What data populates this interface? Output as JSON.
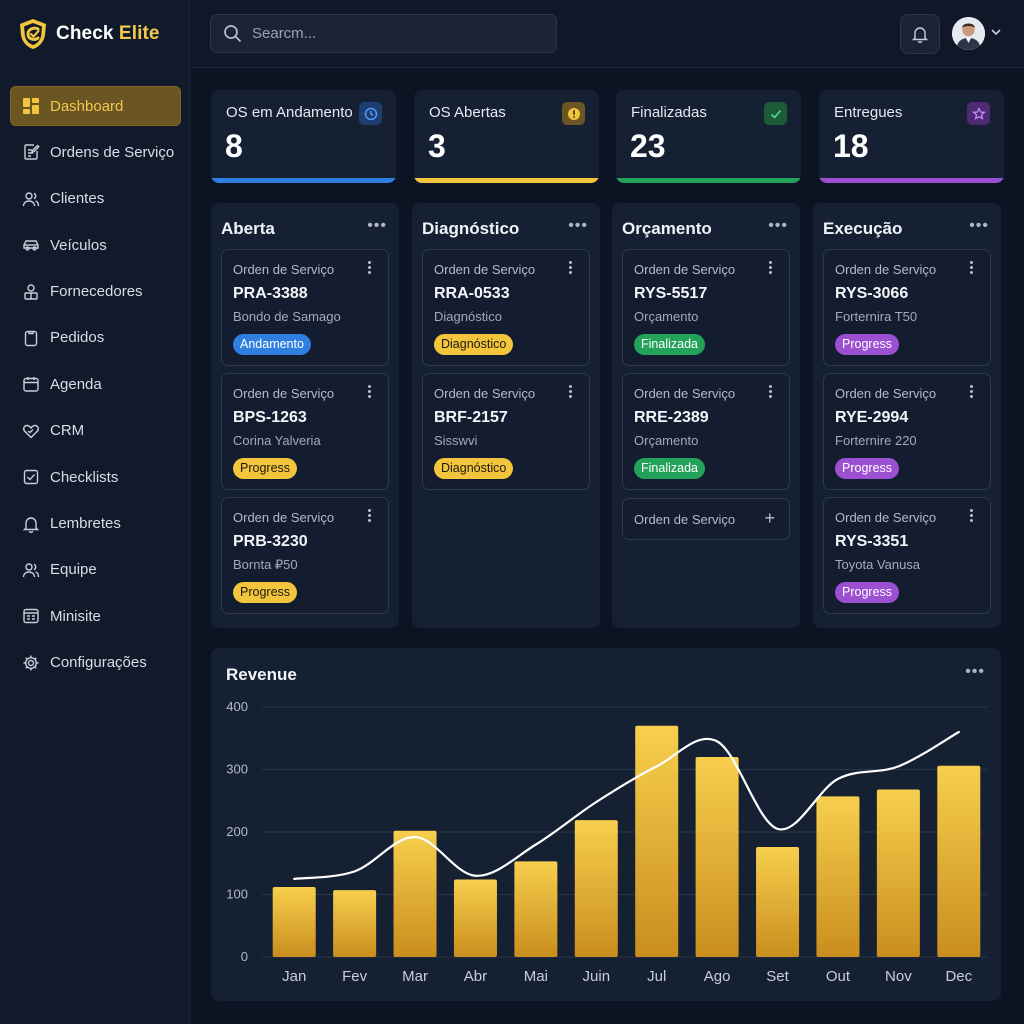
{
  "app": {
    "brand_first": "Check",
    "brand_second": "Elite",
    "brand_color": "#f2c94c"
  },
  "sidebar": {
    "items": [
      {
        "label": "Dashboard",
        "icon": "grid-icon",
        "active": true
      },
      {
        "label": "Ordens de Serviço",
        "icon": "edit-document-icon"
      },
      {
        "label": "Clientes",
        "icon": "users-icon"
      },
      {
        "label": "Veículos",
        "icon": "car-icon"
      },
      {
        "label": "Fornecedores",
        "icon": "supplier-icon"
      },
      {
        "label": "Pedidos",
        "icon": "clipboard-icon"
      },
      {
        "label": "Agenda",
        "icon": "calendar-icon"
      },
      {
        "label": "CRM",
        "icon": "heart-handshake-icon"
      },
      {
        "label": "Checklists",
        "icon": "checkbox-icon"
      },
      {
        "label": "Lembretes",
        "icon": "bell-icon"
      },
      {
        "label": "Equipe",
        "icon": "team-icon"
      },
      {
        "label": "Minisite",
        "icon": "browser-icon"
      },
      {
        "label": "Configurações",
        "icon": "gear-icon"
      }
    ]
  },
  "header": {
    "search_placeholder": "Searcm..."
  },
  "stats": [
    {
      "label": "OS em Andamento",
      "value": "8",
      "icon": "clock-icon",
      "color": "#2f7fe0"
    },
    {
      "label": "OS Abertas",
      "value": "3",
      "icon": "alert-icon",
      "color": "#f2c53d"
    },
    {
      "label": "Finalizadas",
      "value": "23",
      "icon": "check-icon",
      "color": "#23a25a"
    },
    {
      "label": "Entregues",
      "value": "18",
      "icon": "star-icon",
      "color": "#9b4fd1"
    }
  ],
  "kanban": [
    {
      "title": "Aberta",
      "cards": [
        {
          "kind": "Orden de Serviço",
          "code": "PRA-3388",
          "sub": "Bondo de Samago",
          "badge": "Andamento",
          "badge_color": "blue"
        },
        {
          "kind": "Orden de Serviço",
          "code": "BPS-1263",
          "sub": "Corina Yalveria",
          "badge": "Progress",
          "badge_color": "yellow"
        },
        {
          "kind": "Orden de Serviço",
          "code": "PRB-3230",
          "sub": "Bornta ₽50",
          "badge": "Progress",
          "badge_color": "yellow"
        }
      ]
    },
    {
      "title": "Diagnóstico",
      "cards": [
        {
          "kind": "Orden de Serviço",
          "code": "RRA-0533",
          "sub": "Diagnóstico",
          "badge": "Diagnóstico",
          "badge_color": "yellow"
        },
        {
          "kind": "Orden de Serviço",
          "code": "BRF-2157",
          "sub": "Sisswvi",
          "badge": "Diagnóstico",
          "badge_color": "yellow"
        }
      ]
    },
    {
      "title": "Orçamento",
      "cards": [
        {
          "kind": "Orden de Serviço",
          "code": "RYS-5517",
          "sub": "Orçamento",
          "badge": "Finalizada",
          "badge_color": "green"
        },
        {
          "kind": "Orden de Serviço",
          "code": "RRE-2389",
          "sub": "Orçamento",
          "badge": "Finalizada",
          "badge_color": "green"
        }
      ],
      "add_card": {
        "kind": "Orden de Serviço",
        "plus": "+"
      }
    },
    {
      "title": "Execução",
      "cards": [
        {
          "kind": "Orden de Serviço",
          "code": "RYS-3066",
          "sub": "Forternira T50",
          "badge": "Progress",
          "badge_color": "purple"
        },
        {
          "kind": "Orden de Serviço",
          "code": "RYE-2994",
          "sub": "Forternire 220",
          "badge": "Progress",
          "badge_color": "purple"
        },
        {
          "kind": "Orden de Serviço",
          "code": "RYS-3351",
          "sub": "Toyota Vanusa",
          "badge": "Progress",
          "badge_color": "purple"
        }
      ]
    }
  ],
  "chart_data": {
    "type": "bar",
    "title": "Revenue",
    "xlabel": "",
    "ylabel": "",
    "categories": [
      "Jan",
      "Fev",
      "Mar",
      "Abr",
      "Mai",
      "Juin",
      "Jul",
      "Ago",
      "Set",
      "Out",
      "Nov",
      "Dec"
    ],
    "series": [
      {
        "type": "bar",
        "values": [
          112,
          107,
          202,
          124,
          153,
          219,
          370,
          320,
          176,
          257,
          268,
          306
        ],
        "color": "#f2c53d"
      },
      {
        "type": "line",
        "values": [
          125,
          137,
          192,
          130,
          180,
          248,
          305,
          345,
          205,
          285,
          305,
          360
        ],
        "color": "#ffffff"
      }
    ],
    "yticks": [
      0,
      100,
      200,
      300,
      400
    ],
    "ylim": [
      0,
      400
    ],
    "grid": true
  }
}
